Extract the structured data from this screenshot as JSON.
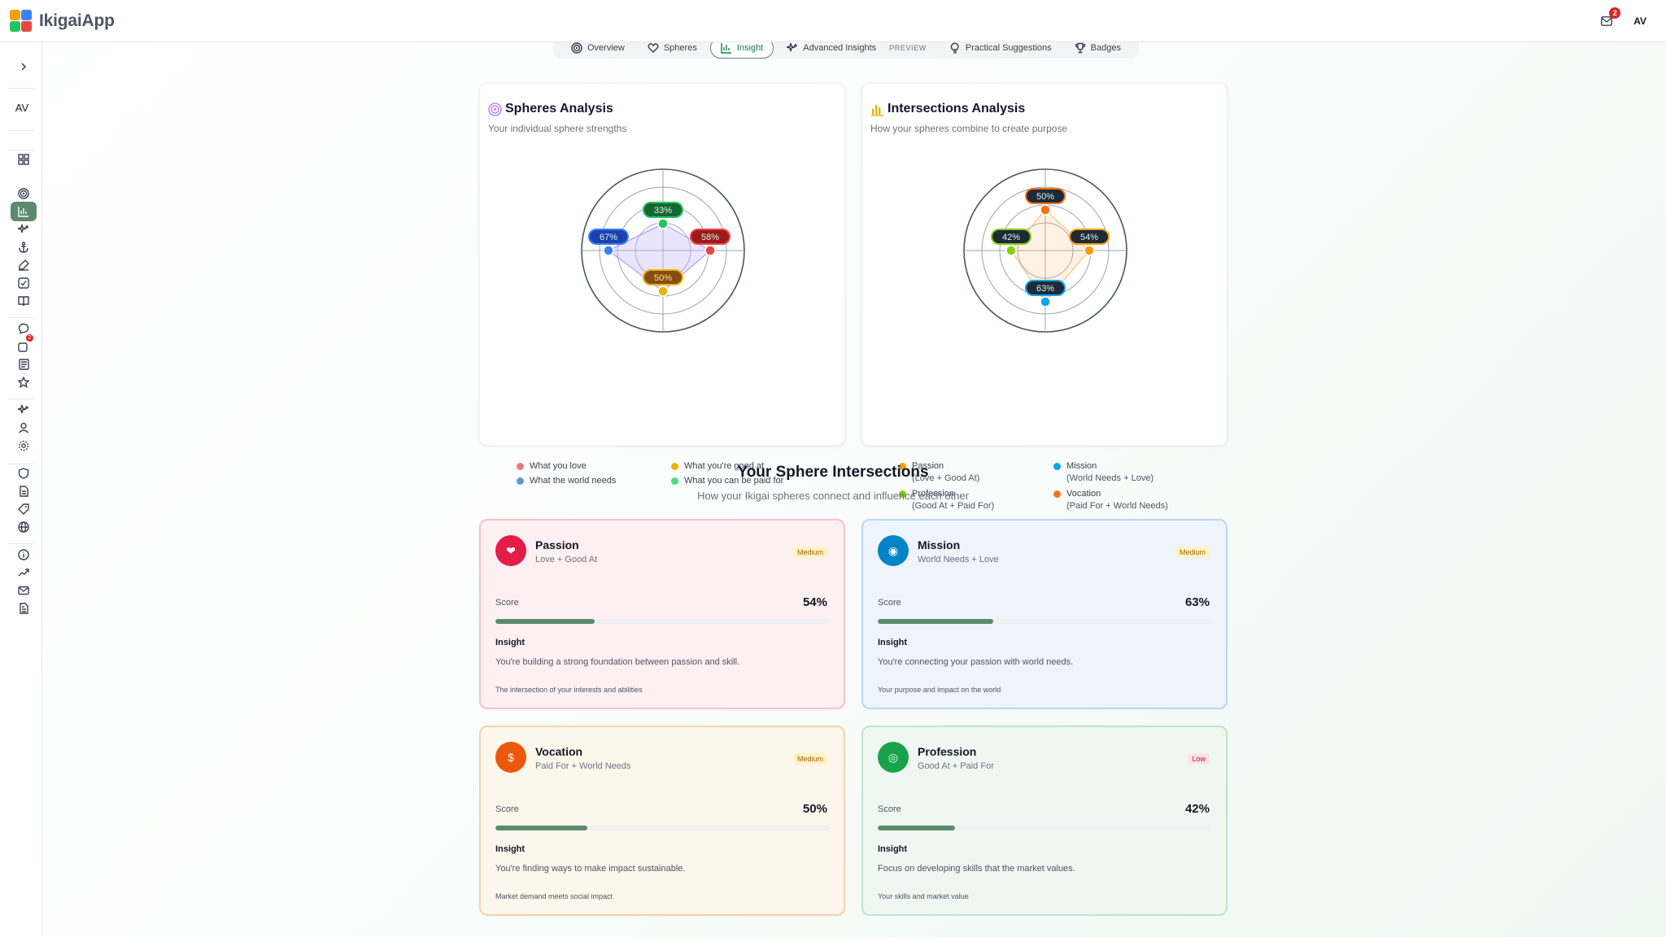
{
  "app": {
    "name": "IkigaiApp",
    "avatar": "AV",
    "notification_count": "2"
  },
  "sidebar": {
    "avatar": "AV",
    "message_badge": "2",
    "items": [
      {
        "name": "dashboard-icon"
      },
      {
        "name": "target-icon"
      },
      {
        "name": "chart-icon"
      },
      {
        "name": "sparkles-icon"
      },
      {
        "name": "anchor-icon"
      },
      {
        "name": "edit-icon"
      },
      {
        "name": "checkbox-icon"
      },
      {
        "name": "book-icon"
      },
      {
        "name": "chat-icon"
      },
      {
        "name": "notification-icon"
      },
      {
        "name": "newspaper-icon"
      },
      {
        "name": "star-icon"
      },
      {
        "name": "sparkles-icon"
      },
      {
        "name": "user-icon"
      },
      {
        "name": "settings-icon"
      },
      {
        "name": "shield-icon"
      },
      {
        "name": "document-icon"
      },
      {
        "name": "tag-icon"
      },
      {
        "name": "globe-icon"
      },
      {
        "name": "info-icon"
      },
      {
        "name": "trend-icon"
      },
      {
        "name": "mail-icon"
      },
      {
        "name": "file-icon"
      }
    ]
  },
  "tabs": [
    {
      "label": "Overview",
      "icon": "target-icon",
      "active": false
    },
    {
      "label": "Spheres",
      "icon": "heart-icon",
      "active": false
    },
    {
      "label": "Insight",
      "icon": "chart-icon",
      "active": true
    },
    {
      "label": "Advanced Insights",
      "icon": "sparkles-icon",
      "active": false,
      "tag": "PREVIEW"
    },
    {
      "label": "Practical Suggestions",
      "icon": "lightbulb-icon",
      "active": false
    },
    {
      "label": "Badges",
      "icon": "trophy-icon",
      "active": false
    }
  ],
  "spheres_card": {
    "title": "Spheres Analysis",
    "subtitle": "Your individual sphere strengths",
    "legend": [
      {
        "label": "What you love",
        "color": "#ec7a7a"
      },
      {
        "label": "What you're good at",
        "color": "#eab308"
      },
      {
        "label": "What the world needs",
        "color": "#5b9bd5"
      },
      {
        "label": "What you can be paid for",
        "color": "#4ade80"
      }
    ]
  },
  "intersections_card": {
    "title": "Intersections Analysis",
    "subtitle": "How your spheres combine to create purpose",
    "legend": [
      {
        "label": "Passion",
        "sub": "(Love + Good At)",
        "color": "#f59e0b"
      },
      {
        "label": "Mission",
        "sub": "(World Needs + Love)",
        "color": "#0ea5e9"
      },
      {
        "label": "Profession",
        "sub": "(Good At + Paid For)",
        "color": "#84cc16"
      },
      {
        "label": "Vocation",
        "sub": "(Paid For + World Needs)",
        "color": "#f97316"
      }
    ]
  },
  "chart_data": [
    {
      "type": "radar",
      "title": "Spheres Analysis",
      "axes": [
        "top",
        "right",
        "bottom",
        "left"
      ],
      "points": [
        {
          "label": "33%",
          "value": 33,
          "color": "#22c55e",
          "fill": "#166534"
        },
        {
          "label": "58%",
          "value": 58,
          "color": "#ef4444",
          "fill": "#991b1b"
        },
        {
          "label": "50%",
          "value": 50,
          "color": "#eab308",
          "fill": "#854d0e"
        },
        {
          "label": "67%",
          "value": 67,
          "color": "#3b82f6",
          "fill": "#1e40af"
        }
      ],
      "ylim": [
        0,
        100
      ]
    },
    {
      "type": "radar",
      "title": "Intersections Analysis",
      "axes": [
        "top",
        "right",
        "bottom",
        "left"
      ],
      "points": [
        {
          "label": "50%",
          "value": 50,
          "color": "#f97316",
          "fill": "#1f2937"
        },
        {
          "label": "54%",
          "value": 54,
          "color": "#f59e0b",
          "fill": "#1f2937"
        },
        {
          "label": "63%",
          "value": 63,
          "color": "#0ea5e9",
          "fill": "#1f2937"
        },
        {
          "label": "42%",
          "value": 42,
          "color": "#84cc16",
          "fill": "#1f2937"
        }
      ],
      "ylim": [
        0,
        100
      ]
    }
  ],
  "section": {
    "title": "Your Sphere Intersections",
    "subtitle": "How your Ikigai spheres connect and influence each other"
  },
  "intersections": [
    {
      "name": "Passion",
      "combo": "Love + Good At",
      "level": "Medium",
      "score_label": "Score",
      "score": "54%",
      "score_value": 54,
      "insight_label": "Insight",
      "insight": "You're building a strong foundation between passion and skill.",
      "note": "The intersection of your interests and abilities",
      "icon": "heart-icon",
      "icon_glyph": "❤",
      "icon_color": "#e11d48",
      "bg": "#fdf0f1",
      "border": "#f5c2c7"
    },
    {
      "name": "Mission",
      "combo": "World Needs + Love",
      "level": "Medium",
      "score_label": "Score",
      "score": "63%",
      "score_value": 63,
      "insight_label": "Insight",
      "insight": "You're connecting your passion with world needs.",
      "note": "Your purpose and impact on the world",
      "icon": "globe-icon",
      "icon_glyph": "◉",
      "icon_color": "#0284c7",
      "bg": "#eef4fc",
      "border": "#bcd6ef"
    },
    {
      "name": "Vocation",
      "combo": "Paid For + World Needs",
      "level": "Medium",
      "score_label": "Score",
      "score": "50%",
      "score_value": 50,
      "insight_label": "Insight",
      "insight": "You're finding ways to make impact sustainable.",
      "note": "Market demand meets social impact",
      "icon": "money-icon",
      "icon_glyph": "$",
      "icon_color": "#ea580c",
      "bg": "#fdf6ea",
      "border": "#f4d3a8"
    },
    {
      "name": "Profession",
      "combo": "Good At + Paid For",
      "level": "Low",
      "score_label": "Score",
      "score": "42%",
      "score_value": 42,
      "insight_label": "Insight",
      "insight": "Focus on developing skills that the market values.",
      "note": "Your skills and market value",
      "icon": "target-icon",
      "icon_glyph": "◎",
      "icon_color": "#16a34a",
      "bg": "#eef8f1",
      "border": "#bfe4cb"
    }
  ]
}
